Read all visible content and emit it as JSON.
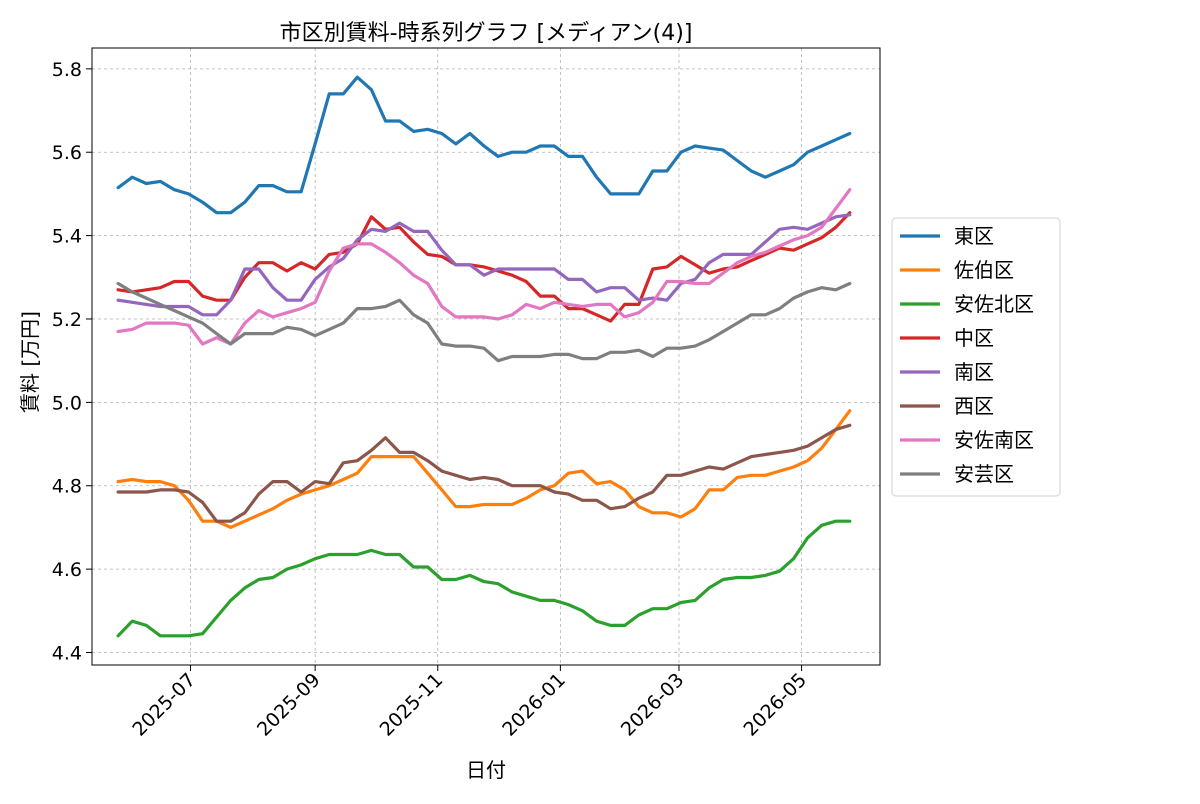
{
  "chart_data": {
    "type": "line",
    "title": "市区別賃料-時系列グラフ [メディアン(4)]",
    "xlabel": "日付",
    "ylabel": "賃料 [万円]",
    "xlim": [
      "2025-05-13",
      "2026-06-09"
    ],
    "ylim": [
      4.37,
      5.85
    ],
    "x_ticks": [
      "2025-07-01",
      "2025-09-01",
      "2025-11-01",
      "2026-01-01",
      "2026-03-01",
      "2026-05-01"
    ],
    "x_tick_labels": [
      "2025-07",
      "2025-09",
      "2025-11",
      "2026-01",
      "2026-03",
      "2026-05"
    ],
    "y_ticks": [
      4.4,
      4.6,
      4.8,
      5.0,
      5.2,
      5.4,
      5.6,
      5.8
    ],
    "y_tick_labels": [
      "4.4",
      "4.6",
      "4.8",
      "5.0",
      "5.2",
      "5.4",
      "5.6",
      "5.8"
    ],
    "grid": true,
    "legend_position": "outside-right",
    "x": [
      "2025-05-26",
      "2025-06-02",
      "2025-06-09",
      "2025-06-16",
      "2025-06-23",
      "2025-06-30",
      "2025-07-07",
      "2025-07-14",
      "2025-07-21",
      "2025-07-28",
      "2025-08-04",
      "2025-08-11",
      "2025-08-18",
      "2025-08-25",
      "2025-09-01",
      "2025-09-08",
      "2025-09-15",
      "2025-09-22",
      "2025-09-29",
      "2025-10-06",
      "2025-10-13",
      "2025-10-20",
      "2025-10-27",
      "2025-11-03",
      "2025-11-10",
      "2025-11-17",
      "2025-11-24",
      "2025-12-01",
      "2025-12-08",
      "2025-12-15",
      "2025-12-22",
      "2025-12-29",
      "2026-01-05",
      "2026-01-12",
      "2026-01-19",
      "2026-01-26",
      "2026-02-02",
      "2026-02-09",
      "2026-02-16",
      "2026-02-23",
      "2026-03-02",
      "2026-03-09",
      "2026-03-16",
      "2026-03-23",
      "2026-03-30",
      "2026-04-06",
      "2026-04-13",
      "2026-04-20",
      "2026-04-27",
      "2026-05-04",
      "2026-05-11",
      "2026-05-18",
      "2026-05-25"
    ],
    "series": [
      {
        "name": "東区",
        "color": "#1f77b4",
        "values": [
          5.515,
          5.54,
          5.525,
          5.53,
          5.51,
          5.5,
          5.48,
          5.455,
          5.455,
          5.48,
          5.52,
          5.52,
          5.505,
          5.505,
          5.62,
          5.74,
          5.74,
          5.78,
          5.75,
          5.675,
          5.675,
          5.65,
          5.655,
          5.645,
          5.62,
          5.645,
          5.615,
          5.59,
          5.6,
          5.6,
          5.615,
          5.615,
          5.59,
          5.59,
          5.54,
          5.5,
          5.5,
          5.5,
          5.555,
          5.555,
          5.6,
          5.615,
          5.61,
          5.605,
          5.58,
          5.555,
          5.54,
          5.555,
          5.57,
          5.6,
          5.615,
          5.63,
          5.645
        ]
      },
      {
        "name": "佐伯区",
        "color": "#ff7f0e",
        "values": [
          4.81,
          4.815,
          4.81,
          4.81,
          4.8,
          4.765,
          4.715,
          4.715,
          4.7,
          4.715,
          4.73,
          4.745,
          4.765,
          4.78,
          4.79,
          4.8,
          4.815,
          4.83,
          4.87,
          4.87,
          4.87,
          4.87,
          4.83,
          4.79,
          4.75,
          4.75,
          4.755,
          4.755,
          4.755,
          4.77,
          4.79,
          4.8,
          4.83,
          4.835,
          4.805,
          4.81,
          4.79,
          4.75,
          4.735,
          4.735,
          4.725,
          4.745,
          4.79,
          4.79,
          4.82,
          4.825,
          4.825,
          4.835,
          4.845,
          4.86,
          4.89,
          4.935,
          4.98
        ]
      },
      {
        "name": "安佐北区",
        "color": "#2ca02c",
        "values": [
          4.44,
          4.475,
          4.465,
          4.44,
          4.44,
          4.44,
          4.445,
          4.485,
          4.525,
          4.555,
          4.575,
          4.58,
          4.6,
          4.61,
          4.625,
          4.635,
          4.635,
          4.635,
          4.645,
          4.635,
          4.635,
          4.605,
          4.605,
          4.575,
          4.575,
          4.585,
          4.57,
          4.565,
          4.545,
          4.535,
          4.525,
          4.525,
          4.515,
          4.5,
          4.475,
          4.465,
          4.465,
          4.49,
          4.505,
          4.505,
          4.52,
          4.525,
          4.555,
          4.575,
          4.58,
          4.58,
          4.585,
          4.595,
          4.625,
          4.675,
          4.705,
          4.715,
          4.715
        ]
      },
      {
        "name": "中区",
        "color": "#d62728",
        "values": [
          5.27,
          5.265,
          5.27,
          5.275,
          5.29,
          5.29,
          5.255,
          5.245,
          5.245,
          5.3,
          5.335,
          5.335,
          5.315,
          5.335,
          5.32,
          5.355,
          5.36,
          5.38,
          5.445,
          5.415,
          5.42,
          5.385,
          5.355,
          5.35,
          5.33,
          5.33,
          5.325,
          5.315,
          5.305,
          5.29,
          5.255,
          5.255,
          5.225,
          5.225,
          5.21,
          5.195,
          5.235,
          5.235,
          5.32,
          5.325,
          5.35,
          5.33,
          5.31,
          5.32,
          5.325,
          5.34,
          5.355,
          5.37,
          5.365,
          5.38,
          5.395,
          5.42,
          5.455
        ]
      },
      {
        "name": "南区",
        "color": "#9467bd",
        "values": [
          5.245,
          5.24,
          5.235,
          5.23,
          5.23,
          5.23,
          5.21,
          5.21,
          5.245,
          5.32,
          5.32,
          5.275,
          5.245,
          5.245,
          5.295,
          5.325,
          5.345,
          5.39,
          5.415,
          5.41,
          5.43,
          5.41,
          5.41,
          5.365,
          5.33,
          5.33,
          5.305,
          5.32,
          5.32,
          5.32,
          5.32,
          5.32,
          5.295,
          5.295,
          5.265,
          5.275,
          5.275,
          5.245,
          5.25,
          5.245,
          5.285,
          5.295,
          5.335,
          5.355,
          5.355,
          5.355,
          5.385,
          5.415,
          5.42,
          5.415,
          5.43,
          5.445,
          5.45
        ]
      },
      {
        "name": "西区",
        "color": "#8c564b",
        "values": [
          4.785,
          4.785,
          4.785,
          4.79,
          4.79,
          4.785,
          4.76,
          4.715,
          4.715,
          4.735,
          4.78,
          4.81,
          4.81,
          4.785,
          4.81,
          4.805,
          4.855,
          4.86,
          4.885,
          4.915,
          4.88,
          4.88,
          4.86,
          4.835,
          4.825,
          4.815,
          4.82,
          4.815,
          4.8,
          4.8,
          4.8,
          4.785,
          4.78,
          4.765,
          4.765,
          4.745,
          4.75,
          4.77,
          4.785,
          4.825,
          4.825,
          4.835,
          4.845,
          4.84,
          4.855,
          4.87,
          4.875,
          4.88,
          4.885,
          4.895,
          4.915,
          4.935,
          4.945
        ]
      },
      {
        "name": "安佐南区",
        "color": "#e377c2",
        "values": [
          5.17,
          5.175,
          5.19,
          5.19,
          5.19,
          5.185,
          5.14,
          5.155,
          5.14,
          5.19,
          5.22,
          5.205,
          5.215,
          5.225,
          5.24,
          5.315,
          5.37,
          5.38,
          5.38,
          5.36,
          5.335,
          5.305,
          5.285,
          5.23,
          5.205,
          5.205,
          5.205,
          5.2,
          5.21,
          5.235,
          5.225,
          5.24,
          5.235,
          5.23,
          5.235,
          5.235,
          5.205,
          5.215,
          5.24,
          5.29,
          5.29,
          5.285,
          5.285,
          5.31,
          5.335,
          5.35,
          5.36,
          5.375,
          5.39,
          5.4,
          5.42,
          5.465,
          5.51
        ]
      },
      {
        "name": "安芸区",
        "color": "#7f7f7f",
        "values": [
          5.285,
          5.265,
          5.25,
          5.235,
          5.22,
          5.205,
          5.19,
          5.165,
          5.14,
          5.165,
          5.165,
          5.165,
          5.18,
          5.175,
          5.16,
          5.175,
          5.19,
          5.225,
          5.225,
          5.23,
          5.245,
          5.21,
          5.19,
          5.14,
          5.135,
          5.135,
          5.13,
          5.1,
          5.11,
          5.11,
          5.11,
          5.115,
          5.115,
          5.105,
          5.105,
          5.12,
          5.12,
          5.125,
          5.11,
          5.13,
          5.13,
          5.135,
          5.15,
          5.17,
          5.19,
          5.21,
          5.21,
          5.225,
          5.25,
          5.265,
          5.275,
          5.27,
          5.285
        ]
      }
    ]
  }
}
